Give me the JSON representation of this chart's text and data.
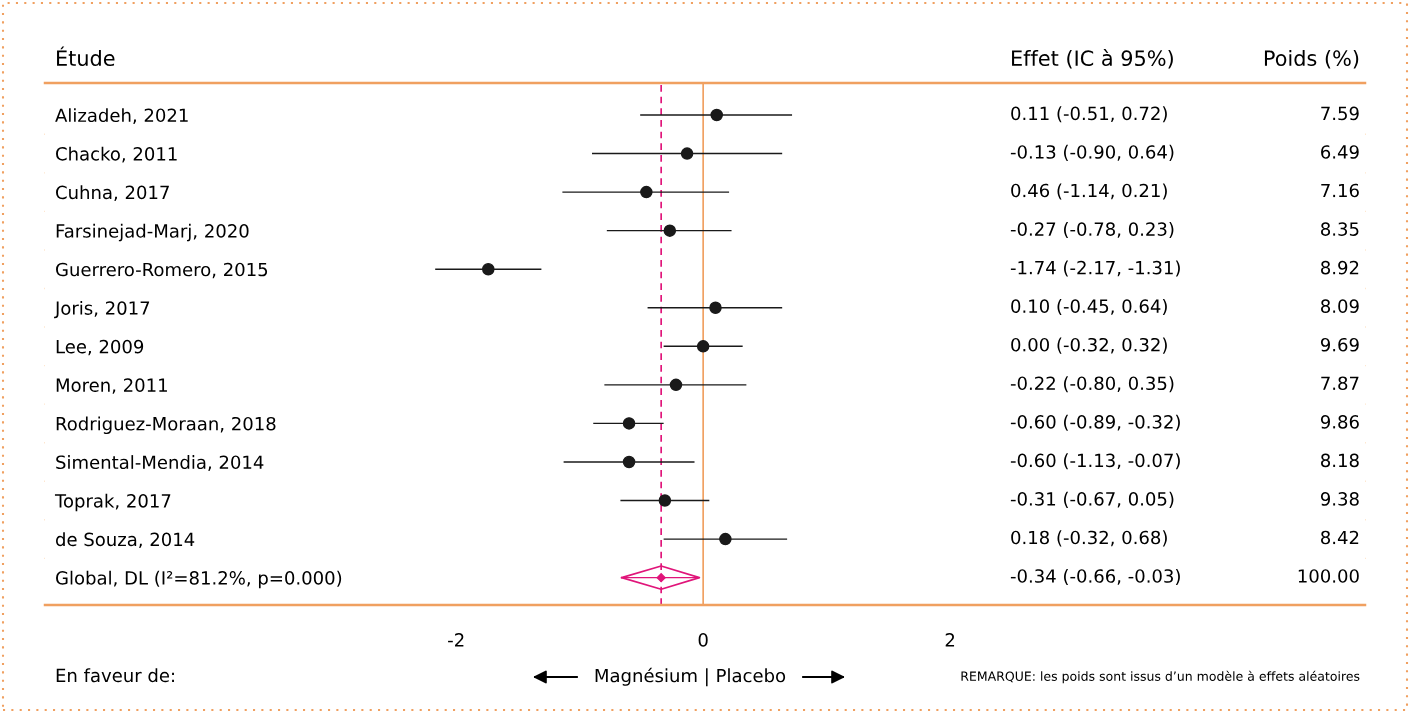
{
  "chart_data": {
    "type": "scatter",
    "orientation": "horizontal",
    "ylabel": "Étude",
    "xlabel": "Magnésium | Placebo",
    "categories": [
      "Alizadeh, 2021",
      "Chacko, 2011",
      "Cuhna, 2017",
      "Farsinejad-Marj, 2020",
      "Guerrero-Romero, 2015",
      "Joris, 2017",
      "Lee, 2009",
      "Moren, 2011",
      "Rodriguez-Moraan, 2018",
      "Simental-Mendia, 2014",
      "Toprak, 2017",
      "de Souza, 2014",
      "Global, DL (I²=81.2%, p=0.000)"
    ],
    "xlim": [
      -5.33,
      5.36
    ],
    "xticks": [
      {
        "value": -2,
        "label": "-2"
      },
      0,
      2
    ],
    "series": [
      {
        "marker": "circle",
        "color": "#1a1a1a",
        "values": [
          0.11,
          -0.13,
          -0.46,
          -0.27,
          -1.74,
          0.1,
          0.0,
          -0.22,
          -0.6,
          -0.6,
          -0.31,
          0.18,
          null
        ],
        "errors": [
          [
            -0.51,
            0.72
          ],
          [
            -0.9,
            0.64
          ],
          [
            -1.14,
            0.21
          ],
          [
            -0.78,
            0.23
          ],
          [
            -2.17,
            -1.31
          ],
          [
            -0.45,
            0.64
          ],
          [
            -0.32,
            0.32
          ],
          [
            -0.8,
            0.35
          ],
          [
            -0.89,
            -0.32
          ],
          [
            -1.13,
            -0.07
          ],
          [
            -0.67,
            0.05
          ],
          [
            -0.32,
            0.68
          ],
          null
        ],
        "name": null
      },
      {
        "marker": "diamond",
        "color": "#e0157a",
        "values": [
          null,
          null,
          null,
          null,
          null,
          null,
          null,
          null,
          null,
          null,
          null,
          null,
          -0.34
        ],
        "errors": [
          null,
          null,
          null,
          null,
          null,
          null,
          null,
          null,
          null,
          null,
          null,
          null,
          [
            -0.66,
            -0.03
          ]
        ]
      }
    ],
    "ref_lines": [
      {
        "axis": "x",
        "value": 0,
        "color": "#f0a060",
        "line_style": "solid"
      },
      {
        "axis": "x",
        "value": -0.34,
        "color": "#e0157a",
        "line_style": "dashed"
      }
    ],
    "annotations": [
      "Effet (IC à 95%)",
      "Poids (%)",
      "En faveur de:",
      "REMARQUE: les poids sont issus d’un modèle à effets aléatoires",
      "0.11 (-0.51, 0.72)",
      "-0.13 (-0.90, 0.64)",
      "0.46 (-1.14, 0.21)",
      "-0.27 (-0.78, 0.23)",
      "-1.74 (-2.17, -1.31)",
      "0.10 (-0.45, 0.64)",
      "0.00 (-0.32, 0.32)",
      "-0.22 (-0.80, 0.35)",
      "-0.60 (-0.89, -0.32)",
      "-0.60 (-1.13, -0.07)",
      "-0.31 (-0.67, 0.05)",
      "0.18 (-0.32, 0.68)",
      "-0.34 (-0.66, -0.03)",
      "7.59",
      "6.49",
      "7.16",
      "8.35",
      "8.92",
      "8.09",
      "9.69",
      "7.87",
      "9.86",
      "8.18",
      "9.38",
      "8.42",
      "100.00"
    ]
  }
}
